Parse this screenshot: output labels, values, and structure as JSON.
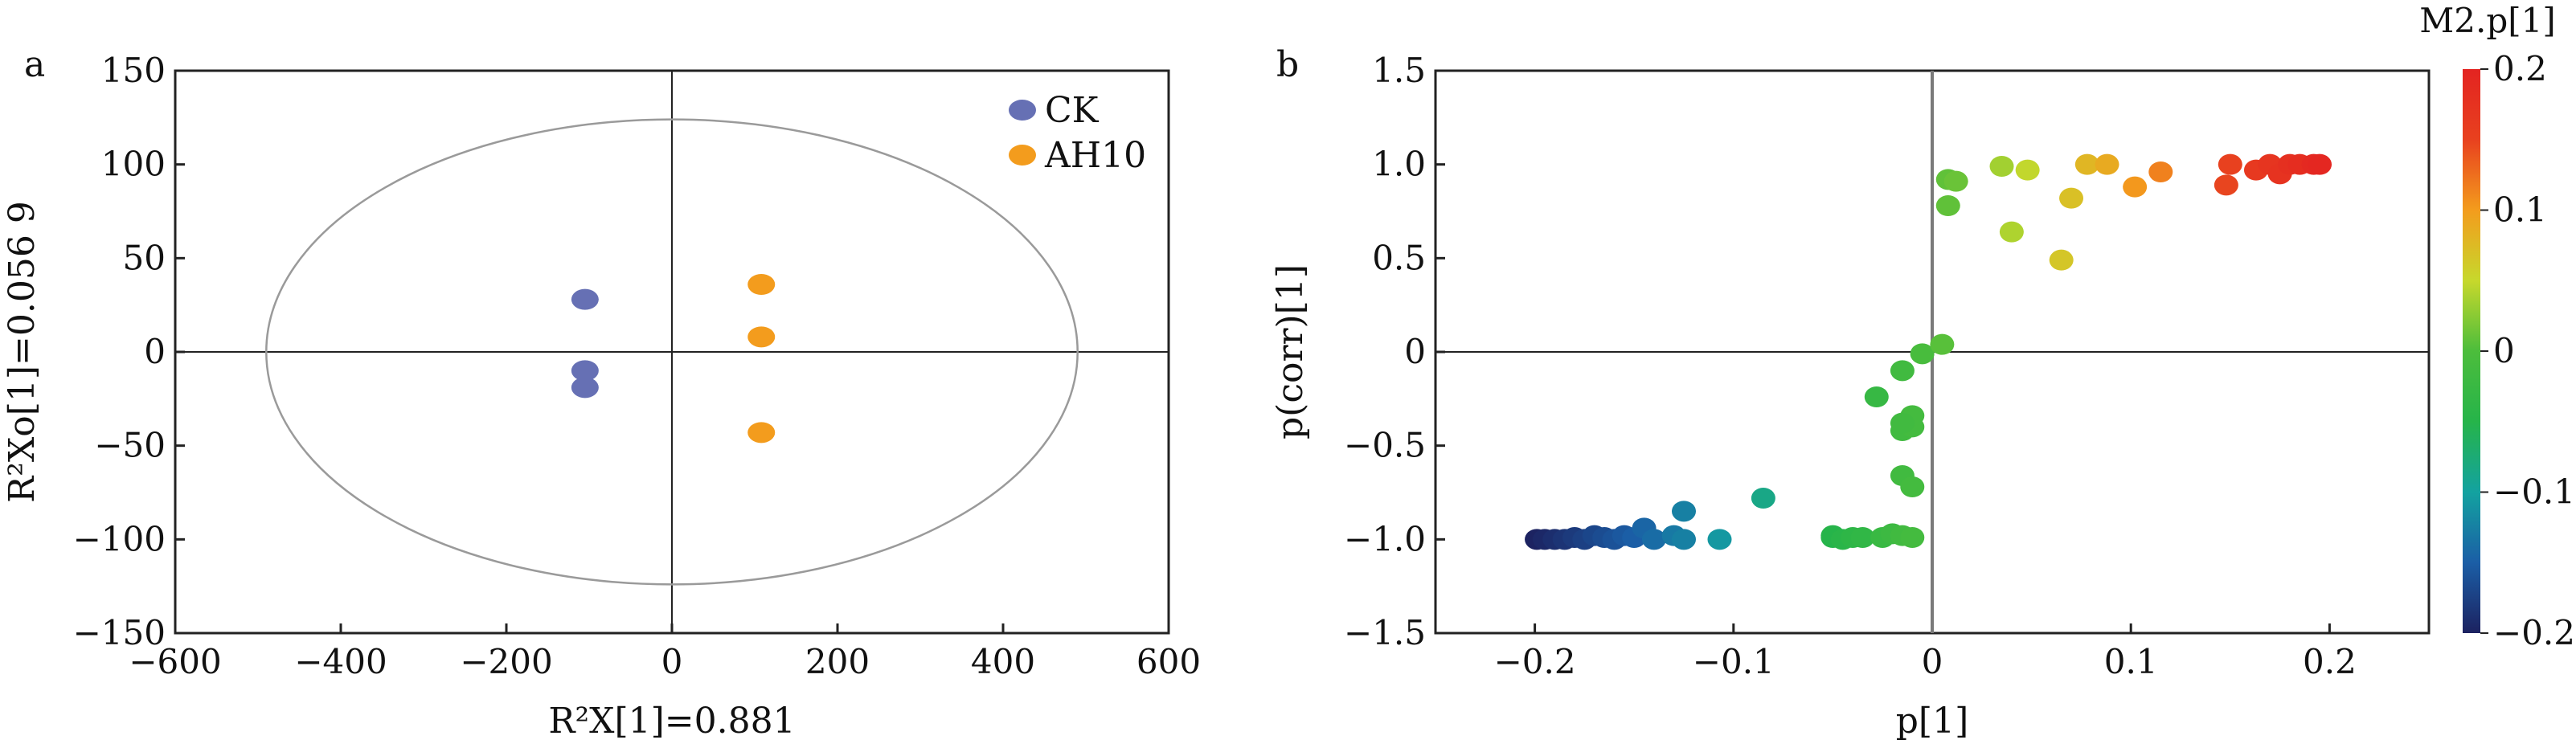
{
  "chart_data": [
    {
      "panel_label": "a",
      "type": "scatter",
      "title": "",
      "xlabel": "R²X[1]=0.881",
      "ylabel": "R²Xo[1]=0.056 9",
      "xlim": [
        -600,
        600
      ],
      "ylim": [
        -150,
        150
      ],
      "xticks": [
        -600,
        -400,
        -200,
        0,
        200,
        400,
        600
      ],
      "yticks": [
        -150,
        -100,
        -50,
        0,
        50,
        100,
        150
      ],
      "xtick_labels": [
        "−600",
        "−400",
        "−200",
        "0",
        "200",
        "400",
        "600"
      ],
      "ytick_labels": [
        "−150",
        "−100",
        "−50",
        "0",
        "50",
        "100",
        "150"
      ],
      "grid": false,
      "legend_position": "top-right",
      "ellipse": {
        "cx": 0,
        "cy": 0,
        "rx": 490,
        "ry": 124
      },
      "series": [
        {
          "name": "CK",
          "color": "#6670b4",
          "points": [
            [
              -105,
              28
            ],
            [
              -105,
              -10
            ],
            [
              -105,
              -19
            ]
          ]
        },
        {
          "name": "AH10",
          "color": "#f39c1d",
          "points": [
            [
              108,
              36
            ],
            [
              108,
              8
            ],
            [
              108,
              -43
            ]
          ]
        }
      ]
    },
    {
      "panel_label": "b",
      "type": "scatter",
      "title": "",
      "xlabel": "p[1]",
      "ylabel": "p(corr)[1]",
      "xlim": [
        -0.25,
        0.25
      ],
      "ylim": [
        -1.5,
        1.5
      ],
      "xticks": [
        -0.2,
        -0.1,
        0,
        0.1,
        0.2
      ],
      "yticks": [
        -1.5,
        -1.0,
        -0.5,
        0,
        0.5,
        1.0,
        1.5
      ],
      "xtick_labels": [
        "−0.2",
        "−0.1",
        "0",
        "0.1",
        "0.2"
      ],
      "ytick_labels": [
        "−1.5",
        "−1.0",
        "−0.5",
        "0",
        "0.5",
        "1.0",
        "1.5"
      ],
      "grid": false,
      "colorbar": {
        "title": "M2.p[1]",
        "range": [
          -0.2,
          0.2
        ],
        "tick_values": [
          0.2,
          0.1,
          0,
          -0.1,
          -0.2
        ],
        "tick_labels": [
          "0.2",
          "0.1",
          "0",
          "−0.1",
          "−0.2"
        ],
        "colors": [
          "#1c2260",
          "#1b5ea6",
          "#13a2a0",
          "#26b44a",
          "#4cbd3c",
          "#c7d82c",
          "#f39c1d",
          "#e8411f",
          "#e32421"
        ]
      },
      "points": [
        [
          -0.199,
          -1.0
        ],
        [
          -0.195,
          -1.0
        ],
        [
          -0.19,
          -1.0
        ],
        [
          -0.185,
          -1.0
        ],
        [
          -0.18,
          -0.99
        ],
        [
          -0.175,
          -1.0
        ],
        [
          -0.17,
          -0.98
        ],
        [
          -0.165,
          -0.99
        ],
        [
          -0.16,
          -1.0
        ],
        [
          -0.155,
          -0.98
        ],
        [
          -0.15,
          -0.99
        ],
        [
          -0.145,
          -0.94
        ],
        [
          -0.14,
          -1.0
        ],
        [
          -0.13,
          -0.98
        ],
        [
          -0.125,
          -1.0
        ],
        [
          -0.125,
          -0.85
        ],
        [
          -0.107,
          -1.0
        ],
        [
          -0.085,
          -0.78
        ],
        [
          -0.05,
          -0.98
        ],
        [
          -0.05,
          -0.99
        ],
        [
          -0.045,
          -1.0
        ],
        [
          -0.04,
          -0.99
        ],
        [
          -0.035,
          -0.99
        ],
        [
          -0.025,
          -0.99
        ],
        [
          -0.02,
          -0.97
        ],
        [
          -0.015,
          -0.98
        ],
        [
          -0.01,
          -0.99
        ],
        [
          -0.015,
          -0.66
        ],
        [
          -0.01,
          -0.72
        ],
        [
          -0.015,
          -0.42
        ],
        [
          -0.01,
          -0.4
        ],
        [
          -0.01,
          -0.34
        ],
        [
          -0.015,
          -0.38
        ],
        [
          -0.028,
          -0.24
        ],
        [
          -0.015,
          -0.1
        ],
        [
          -0.005,
          -0.01
        ],
        [
          0.005,
          0.04
        ],
        [
          0.008,
          0.92
        ],
        [
          0.012,
          0.91
        ],
        [
          0.008,
          0.78
        ],
        [
          0.035,
          0.99
        ],
        [
          0.048,
          0.97
        ],
        [
          0.04,
          0.64
        ],
        [
          0.065,
          0.49
        ],
        [
          0.07,
          0.82
        ],
        [
          0.078,
          1.0
        ],
        [
          0.088,
          1.0
        ],
        [
          0.102,
          0.88
        ],
        [
          0.115,
          0.96
        ],
        [
          0.148,
          0.89
        ],
        [
          0.15,
          1.0
        ],
        [
          0.163,
          0.97
        ],
        [
          0.17,
          1.0
        ],
        [
          0.175,
          0.95
        ],
        [
          0.18,
          1.0
        ],
        [
          0.185,
          1.0
        ],
        [
          0.192,
          1.0
        ],
        [
          0.195,
          1.0
        ]
      ]
    }
  ]
}
